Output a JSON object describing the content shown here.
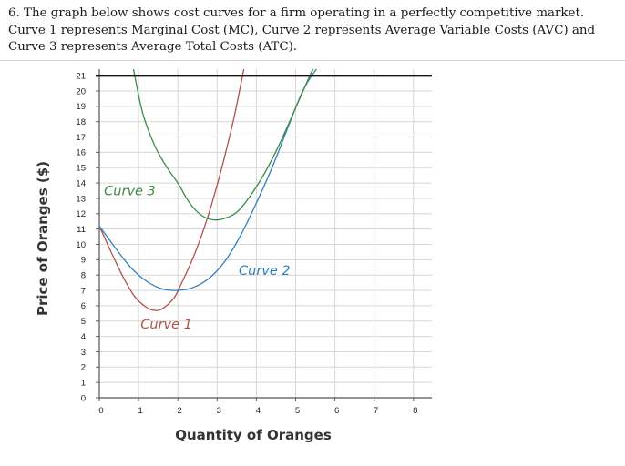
{
  "question": {
    "line1": "6. The graph below shows cost curves for a firm operating in a perfectly competitive market.",
    "line2": "Curve 1 represents Marginal Cost (MC), Curve 2 represents Average Variable Costs (AVC) and",
    "line3": "Curve 3 represents Average Total Costs (ATC)."
  },
  "chart_data": {
    "type": "line",
    "title": "",
    "xlabel": "Quantity of Oranges",
    "ylabel": "Price of Oranges ($)",
    "xlim": [
      0,
      8.25
    ],
    "ylim": [
      0,
      21.5
    ],
    "x_ticks": [
      0,
      1,
      2,
      3,
      4,
      5,
      6,
      7,
      8
    ],
    "y_ticks": [
      0,
      1,
      2,
      3,
      4,
      5,
      6,
      7,
      8,
      9,
      10,
      11,
      12,
      13,
      14,
      15,
      16,
      17,
      18,
      19,
      20,
      21
    ],
    "grid": true,
    "legend": "none",
    "horizontal_line": {
      "y": 21,
      "color": "#111111"
    },
    "series": [
      {
        "name": "Curve 1",
        "color": "#b0524a",
        "label_at": [
          1.05,
          4.5
        ],
        "points": [
          [
            0,
            11.2
          ],
          [
            0.3,
            9.5
          ],
          [
            0.6,
            7.9
          ],
          [
            0.9,
            6.6
          ],
          [
            1.2,
            5.9
          ],
          [
            1.4,
            5.7
          ],
          [
            1.6,
            5.8
          ],
          [
            1.9,
            6.5
          ],
          [
            2.1,
            7.5
          ],
          [
            2.4,
            9.2
          ],
          [
            2.7,
            11.3
          ],
          [
            2.95,
            13.4
          ],
          [
            3.2,
            15.8
          ],
          [
            3.45,
            18.5
          ],
          [
            3.7,
            21.7
          ]
        ]
      },
      {
        "name": "Curve 2",
        "color": "#2f7fc0",
        "label_at": [
          3.55,
          8.0
        ],
        "points": [
          [
            0,
            11.2
          ],
          [
            0.4,
            9.8
          ],
          [
            0.8,
            8.5
          ],
          [
            1.2,
            7.6
          ],
          [
            1.6,
            7.1
          ],
          [
            2.0,
            7.0
          ],
          [
            2.4,
            7.2
          ],
          [
            2.8,
            7.8
          ],
          [
            3.2,
            8.9
          ],
          [
            3.6,
            10.6
          ],
          [
            4.0,
            12.7
          ],
          [
            4.4,
            15.0
          ],
          [
            4.8,
            17.6
          ],
          [
            5.2,
            20.1
          ],
          [
            5.6,
            21.7
          ]
        ]
      },
      {
        "name": "Curve 3",
        "color": "#3d8a45",
        "label_at": [
          0.12,
          13.2
        ],
        "points": [
          [
            0.85,
            21.7
          ],
          [
            1.1,
            18.6
          ],
          [
            1.4,
            16.5
          ],
          [
            1.7,
            15.1
          ],
          [
            2.0,
            14.0
          ],
          [
            2.3,
            12.7
          ],
          [
            2.6,
            11.9
          ],
          [
            2.9,
            11.6
          ],
          [
            3.2,
            11.7
          ],
          [
            3.5,
            12.1
          ],
          [
            3.8,
            13.0
          ],
          [
            4.2,
            14.6
          ],
          [
            4.6,
            16.6
          ],
          [
            5.0,
            18.9
          ],
          [
            5.4,
            21.2
          ],
          [
            5.55,
            21.9
          ]
        ]
      }
    ]
  }
}
